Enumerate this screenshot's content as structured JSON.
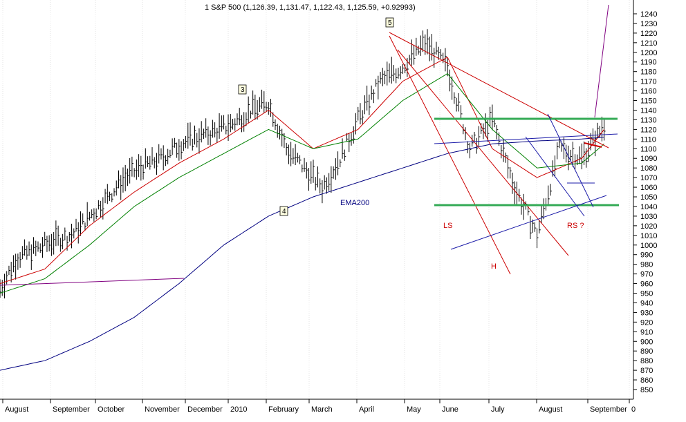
{
  "title": "1 S&P 500 (1,126.39, 1,131.47, 1,122.43, 1,125.59, +0.92993)",
  "chart_data": {
    "type": "line",
    "title": "1 S&P 500 (1,126.39, 1,131.47, 1,122.43, 1,125.59, +0.92993)",
    "ylim": [
      845,
      1252
    ],
    "y_ticks": [
      1240,
      1230,
      1220,
      1210,
      1200,
      1190,
      1180,
      1170,
      1160,
      1150,
      1140,
      1130,
      1120,
      1110,
      1100,
      1090,
      1080,
      1070,
      1060,
      1050,
      1040,
      1030,
      1020,
      1010,
      1000,
      990,
      980,
      970,
      960,
      950,
      940,
      930,
      920,
      910,
      900,
      890,
      880,
      870,
      860,
      850
    ],
    "x_ticks": [
      "August",
      "September",
      "October",
      "November",
      "December",
      "2010",
      "February",
      "March",
      "April",
      "May",
      "June",
      "July",
      "August",
      "September",
      "0"
    ],
    "xlim": [
      0,
      280
    ],
    "grid": true,
    "series": [
      {
        "name": "S&P 500",
        "color": "#000000",
        "x": [
          0,
          8,
          16,
          24,
          32,
          40,
          48,
          56,
          64,
          72,
          80,
          88,
          96,
          104,
          112,
          120,
          128,
          136,
          144,
          152,
          160,
          170,
          180,
          190,
          200,
          210,
          220,
          230,
          240,
          250,
          260,
          270
        ],
        "values": [
          955,
          988,
          995,
          1005,
          1010,
          1030,
          1050,
          1070,
          1082,
          1090,
          1104,
          1112,
          1118,
          1126,
          1140,
          1148,
          1100,
          1080,
          1060,
          1090,
          1130,
          1170,
          1185,
          1210,
          1185,
          1100,
          1130,
          1060,
          1010,
          1100,
          1090,
          1125
        ]
      },
      {
        "name": "",
        "color": "#cc0000",
        "x": [
          0,
          20,
          40,
          60,
          80,
          100,
          120,
          140,
          160,
          180,
          200,
          220,
          240,
          260,
          270
        ],
        "values": [
          960,
          975,
          1020,
          1055,
          1085,
          1110,
          1140,
          1100,
          1120,
          1170,
          1195,
          1100,
          1070,
          1090,
          1120
        ]
      },
      {
        "name": "",
        "color": "#008000",
        "x": [
          0,
          20,
          40,
          60,
          80,
          100,
          120,
          140,
          160,
          180,
          200,
          220,
          240,
          260,
          270
        ],
        "values": [
          950,
          965,
          1000,
          1040,
          1070,
          1095,
          1120,
          1100,
          1110,
          1150,
          1178,
          1120,
          1080,
          1085,
          1105
        ]
      },
      {
        "name": "EMA200",
        "color": "#000080",
        "x": [
          0,
          20,
          40,
          60,
          80,
          100,
          120,
          140,
          160,
          180,
          200,
          220,
          240,
          260,
          270
        ],
        "values": [
          870,
          880,
          900,
          925,
          960,
          1000,
          1030,
          1050,
          1065,
          1080,
          1095,
          1105,
          1108,
          1110,
          1112
        ]
      }
    ],
    "annotations": {
      "wave_labels": [
        "3",
        "4",
        "5"
      ],
      "pattern_labels": [
        "LS",
        "H",
        "RS ?"
      ],
      "ema_label": "EMA200"
    },
    "levels": [
      1132,
      1040
    ]
  }
}
